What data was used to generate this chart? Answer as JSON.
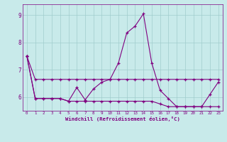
{
  "hours": [
    0,
    1,
    2,
    3,
    4,
    5,
    6,
    7,
    8,
    9,
    10,
    11,
    12,
    13,
    14,
    15,
    16,
    17,
    18,
    19,
    20,
    21,
    22,
    23
  ],
  "line_top": [
    7.5,
    6.65,
    6.65,
    6.65,
    6.65,
    6.65,
    6.65,
    6.65,
    6.65,
    6.65,
    6.65,
    6.65,
    6.65,
    6.65,
    6.65,
    6.65,
    6.65,
    6.65,
    6.65,
    6.65,
    6.65,
    6.65,
    6.65,
    6.65
  ],
  "line_mid": [
    7.5,
    5.95,
    5.95,
    5.95,
    5.95,
    5.85,
    6.35,
    5.9,
    6.3,
    6.55,
    6.65,
    7.25,
    8.35,
    8.6,
    9.05,
    7.25,
    6.25,
    5.95,
    5.65,
    5.65,
    5.65,
    5.65,
    6.1,
    6.55
  ],
  "line_bot": [
    7.5,
    5.95,
    5.95,
    5.95,
    5.95,
    5.85,
    5.85,
    5.85,
    5.85,
    5.85,
    5.85,
    5.85,
    5.85,
    5.85,
    5.85,
    5.85,
    5.75,
    5.65,
    5.65,
    5.65,
    5.65,
    5.65,
    5.65,
    5.65
  ],
  "ylim": [
    5.5,
    9.4
  ],
  "xlim": [
    -0.5,
    23.5
  ],
  "yticks": [
    6,
    7,
    8,
    9
  ],
  "xticks": [
    0,
    1,
    2,
    3,
    4,
    5,
    6,
    7,
    8,
    9,
    10,
    11,
    12,
    13,
    14,
    15,
    16,
    17,
    18,
    19,
    20,
    21,
    22,
    23
  ],
  "xlabel": "Windchill (Refroidissement éolien,°C)",
  "line_color": "#800080",
  "bg_color": "#c8eaea",
  "grid_color": "#a0cccc",
  "tick_color": "#800080"
}
